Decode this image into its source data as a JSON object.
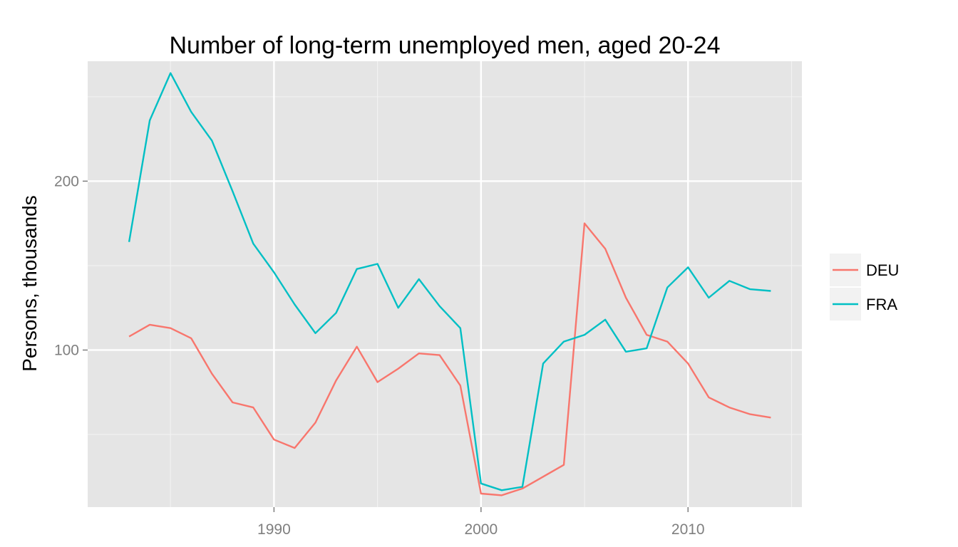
{
  "chart_data": {
    "type": "line",
    "title": "Number of long-term unemployed men, aged 20-24",
    "xlabel": "",
    "ylabel": "Persons, thousands",
    "x": [
      1983,
      1984,
      1985,
      1986,
      1987,
      1988,
      1989,
      1990,
      1991,
      1992,
      1993,
      1994,
      1995,
      1996,
      1997,
      1998,
      1999,
      2000,
      2001,
      2002,
      2003,
      2004,
      2005,
      2006,
      2007,
      2008,
      2009,
      2010,
      2011,
      2012,
      2013,
      2014
    ],
    "series": [
      {
        "name": "DEU",
        "color": "#F8766D",
        "values": [
          108,
          115,
          113,
          107,
          86,
          69,
          66,
          47,
          42,
          57,
          82,
          102,
          81,
          89,
          98,
          97,
          79,
          15,
          14,
          18,
          25,
          32,
          175,
          160,
          131,
          109,
          105,
          92,
          72,
          66,
          62,
          60
        ]
      },
      {
        "name": "FRA",
        "color": "#00BFC4",
        "values": [
          164,
          236,
          264,
          241,
          224,
          194,
          163,
          146,
          127,
          110,
          122,
          148,
          151,
          125,
          142,
          126,
          113,
          21,
          17,
          19,
          92,
          105,
          109,
          118,
          99,
          101,
          137,
          149,
          131,
          141,
          136,
          135
        ]
      }
    ],
    "xticks": [
      "1990",
      "2000",
      "2010"
    ],
    "yticks": [
      "100",
      "200"
    ],
    "xlim": [
      1981,
      2015.5
    ],
    "ylim": [
      7,
      271
    ],
    "grid": true,
    "legend_position": "right"
  }
}
